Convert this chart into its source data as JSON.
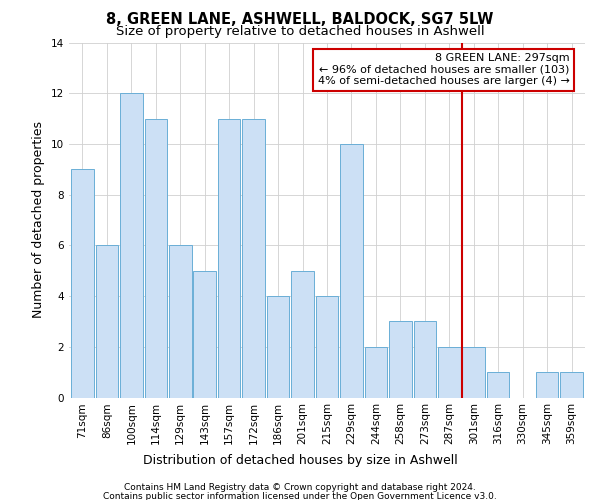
{
  "title": "8, GREEN LANE, ASHWELL, BALDOCK, SG7 5LW",
  "subtitle": "Size of property relative to detached houses in Ashwell",
  "xlabel": "Distribution of detached houses by size in Ashwell",
  "ylabel": "Number of detached properties",
  "categories": [
    "71sqm",
    "86sqm",
    "100sqm",
    "114sqm",
    "129sqm",
    "143sqm",
    "157sqm",
    "172sqm",
    "186sqm",
    "201sqm",
    "215sqm",
    "229sqm",
    "244sqm",
    "258sqm",
    "273sqm",
    "287sqm",
    "301sqm",
    "316sqm",
    "330sqm",
    "345sqm",
    "359sqm"
  ],
  "values": [
    9,
    6,
    12,
    11,
    6,
    5,
    11,
    11,
    4,
    5,
    4,
    10,
    2,
    3,
    3,
    2,
    2,
    1,
    0,
    1,
    1
  ],
  "bar_color": "#cce0f5",
  "bar_edgecolor": "#6aaed6",
  "background_color": "#ffffff",
  "grid_color": "#d0d0d0",
  "vline_x_index": 15.5,
  "vline_color": "#cc0000",
  "annotation_text": "8 GREEN LANE: 297sqm\n← 96% of detached houses are smaller (103)\n4% of semi-detached houses are larger (4) →",
  "annotation_box_color": "#cc0000",
  "ylim": [
    0,
    14
  ],
  "yticks": [
    0,
    2,
    4,
    6,
    8,
    10,
    12,
    14
  ],
  "footer_line1": "Contains HM Land Registry data © Crown copyright and database right 2024.",
  "footer_line2": "Contains public sector information licensed under the Open Government Licence v3.0.",
  "title_fontsize": 10.5,
  "subtitle_fontsize": 9.5,
  "ylabel_fontsize": 9,
  "xlabel_fontsize": 9,
  "tick_fontsize": 7.5,
  "annotation_fontsize": 8,
  "footer_fontsize": 6.5
}
